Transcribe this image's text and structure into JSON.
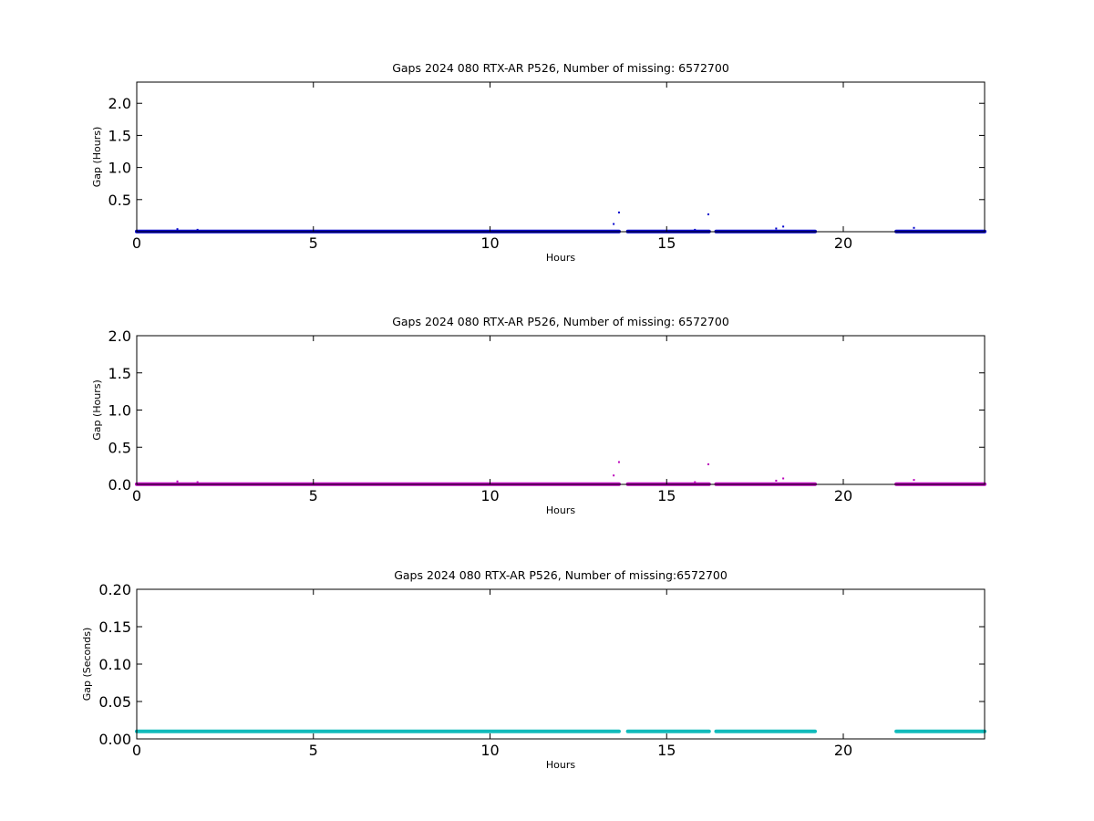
{
  "chart_data": [
    {
      "type": "scatter",
      "title": "Gaps 2024 080 RTX-AR  P526, Number of missing: 6572700",
      "xlabel": "Hours",
      "ylabel": "Gap (Hours)",
      "xlim": [
        0,
        24
      ],
      "ylim": [
        0,
        2.33
      ],
      "xticks": [
        "0",
        "5",
        "10",
        "15",
        "20"
      ],
      "yticks": [
        "0.5",
        "1.0",
        "1.5",
        "2.0"
      ],
      "grid": false,
      "color": "#0000cc",
      "baseline_value": 0.003,
      "baseline_segments": [
        [
          0,
          13.65
        ],
        [
          13.9,
          16.2
        ],
        [
          16.4,
          19.2
        ],
        [
          21.5,
          24
        ]
      ],
      "outliers": [
        {
          "x": 1.15,
          "y": 0.04
        },
        {
          "x": 1.72,
          "y": 0.03
        },
        {
          "x": 13.5,
          "y": 0.12
        },
        {
          "x": 13.65,
          "y": 0.3
        },
        {
          "x": 15.8,
          "y": 0.03
        },
        {
          "x": 16.18,
          "y": 0.27
        },
        {
          "x": 18.1,
          "y": 0.05
        },
        {
          "x": 18.3,
          "y": 0.08
        },
        {
          "x": 22.0,
          "y": 0.06
        }
      ]
    },
    {
      "type": "scatter",
      "title": "Gaps 2024 080 RTX-AR  P526, Number of missing: 6572700",
      "xlabel": "Hours",
      "ylabel": "Gap (Hours)",
      "xlim": [
        0,
        24
      ],
      "ylim": [
        0,
        2.0
      ],
      "xticks": [
        "0",
        "5",
        "10",
        "15",
        "20"
      ],
      "yticks": [
        "0.0",
        "0.5",
        "1.0",
        "1.5",
        "2.0"
      ],
      "grid": false,
      "color": "#bb00bb",
      "baseline_value": 0.003,
      "baseline_segments": [
        [
          0,
          13.65
        ],
        [
          13.9,
          16.2
        ],
        [
          16.4,
          19.2
        ],
        [
          21.5,
          24
        ]
      ],
      "outliers": [
        {
          "x": 1.15,
          "y": 0.04
        },
        {
          "x": 1.72,
          "y": 0.03
        },
        {
          "x": 13.5,
          "y": 0.12
        },
        {
          "x": 13.65,
          "y": 0.3
        },
        {
          "x": 15.8,
          "y": 0.03
        },
        {
          "x": 16.18,
          "y": 0.27
        },
        {
          "x": 18.1,
          "y": 0.05
        },
        {
          "x": 18.3,
          "y": 0.08
        },
        {
          "x": 22.0,
          "y": 0.06
        }
      ]
    },
    {
      "type": "scatter",
      "title": "Gaps 2024 080 RTX-AR  P526, Number of missing:6572700",
      "xlabel": "Hours",
      "ylabel": "Gap (Seconds)",
      "xlim": [
        0,
        24
      ],
      "ylim": [
        0,
        0.2
      ],
      "xticks": [
        "0",
        "5",
        "10",
        "15",
        "20"
      ],
      "yticks": [
        "0.00",
        "0.05",
        "0.10",
        "0.15",
        "0.20"
      ],
      "grid": false,
      "color": "#11bbbb",
      "baseline_value": 0.01,
      "baseline_segments": [
        [
          0,
          13.65
        ],
        [
          13.9,
          16.2
        ],
        [
          16.4,
          19.2
        ],
        [
          21.5,
          24
        ]
      ],
      "outliers": []
    }
  ]
}
